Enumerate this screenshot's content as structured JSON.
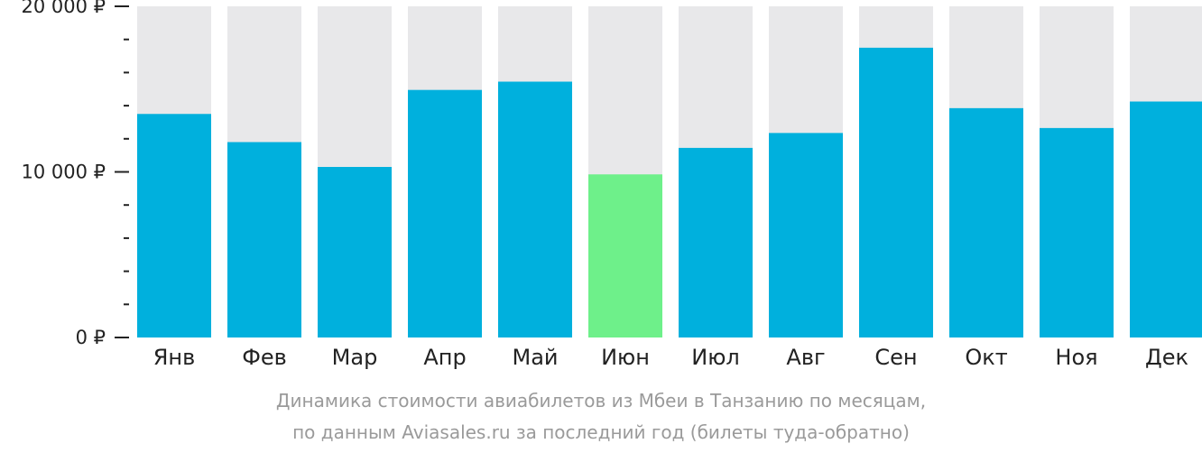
{
  "chart_data": {
    "type": "bar",
    "categories": [
      "Янв",
      "Фев",
      "Мар",
      "Апр",
      "Май",
      "Июн",
      "Июл",
      "Авг",
      "Сен",
      "Окт",
      "Ноя",
      "Дек"
    ],
    "values": [
      13500,
      11800,
      10300,
      14950,
      15450,
      9850,
      11450,
      12350,
      17500,
      13850,
      12650,
      14250
    ],
    "ylim": [
      0,
      20000
    ],
    "yticks": [
      0,
      10000,
      20000
    ],
    "ytick_labels": [
      "0 ₽",
      "10 000 ₽",
      "20 000 ₽"
    ],
    "minor_tick_step": 2000,
    "highlight_index": 5,
    "colors": {
      "bar": "#00b0dd",
      "highlight": "#6ef08a",
      "background_column": "#e8e8ea",
      "axis": "#222222"
    },
    "grid": false,
    "legend": "none",
    "caption_line1": "Динамика стоимости авиабилетов из Мбеи в Танзанию по месяцам,",
    "caption_line2": "по данным Aviasales.ru за последний год (билеты туда-обратно)"
  }
}
